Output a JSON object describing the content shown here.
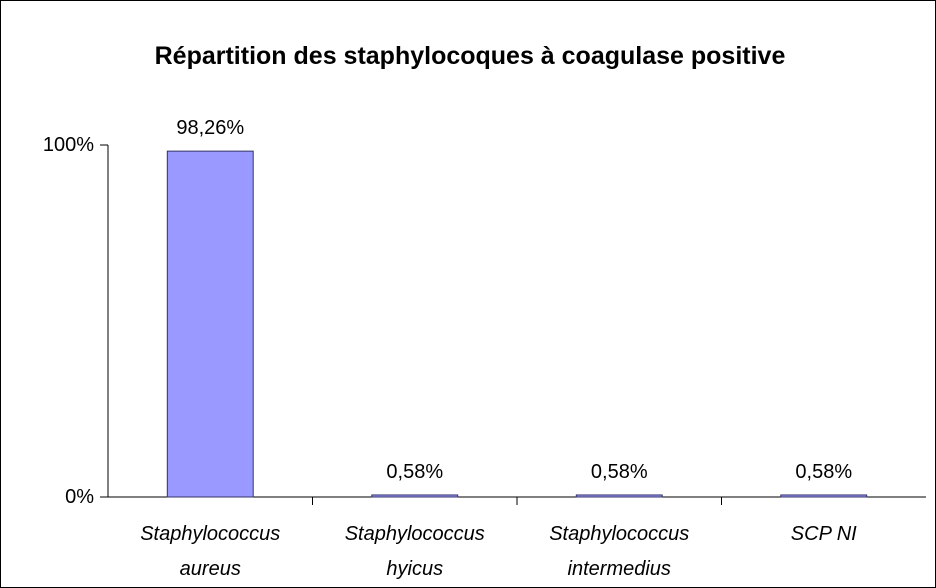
{
  "chart_data": {
    "type": "bar",
    "title": "Répartition des staphylocoques à coagulase positive",
    "categories": [
      "Staphylococcus aureus",
      "Staphylococcus hyicus",
      "Staphylococcus intermedius",
      "SCP NI"
    ],
    "values": [
      98.26,
      0.58,
      0.58,
      0.58
    ],
    "value_labels": [
      "98,26%",
      "0,58%",
      "0,58%",
      "0,58%"
    ],
    "color": "#9999ff",
    "ylim": [
      0,
      100
    ],
    "yticks": [
      {
        "value": 0,
        "label": "0%"
      },
      {
        "value": 100,
        "label": "100%"
      }
    ],
    "grid": false
  }
}
